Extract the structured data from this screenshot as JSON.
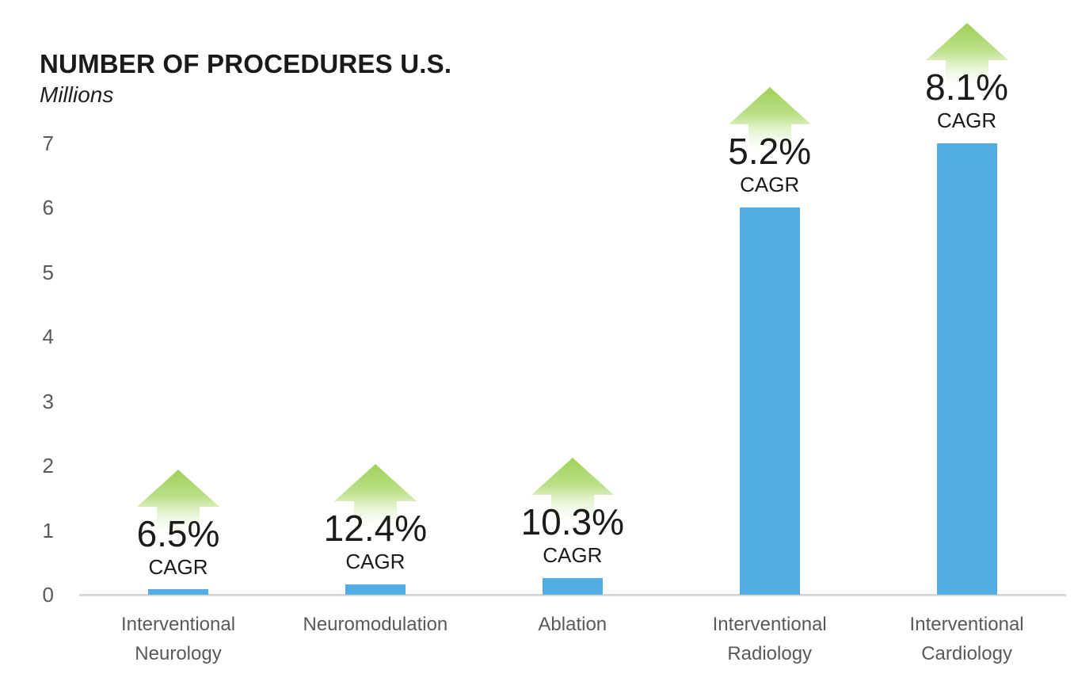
{
  "header": {
    "title": "NUMBER OF PROCEDURES U.S.",
    "subtitle": "Millions"
  },
  "chart_data": {
    "type": "bar",
    "title": "NUMBER OF PROCEDURES U.S.",
    "units_label": "Millions",
    "categories": [
      "Interventional Neurology",
      "Neuromodulation",
      "Ablation",
      "Interventional Radiology",
      "Interventional Cardiology"
    ],
    "values": [
      0.08,
      0.16,
      0.26,
      6.0,
      7.0
    ],
    "cagr_values": [
      "6.5%",
      "12.4%",
      "10.3%",
      "5.2%",
      "8.1%"
    ],
    "cagr_label": "CAGR",
    "yticks": [
      0,
      1,
      2,
      3,
      4,
      5,
      6,
      7
    ],
    "ylim": [
      0,
      7
    ],
    "grid": false,
    "legend": false,
    "colors": {
      "bar": "#52ade4",
      "arrow_green_top": "#9ed156",
      "arrow_green_mid": "#bce08a",
      "arrow_fade": "#ffffff",
      "axis_line": "#d8d8d8",
      "tick_text": "#595959",
      "category_text": "#595959",
      "annotation_text": "#1b1b1b",
      "title_text": "#1a1a1a"
    }
  }
}
